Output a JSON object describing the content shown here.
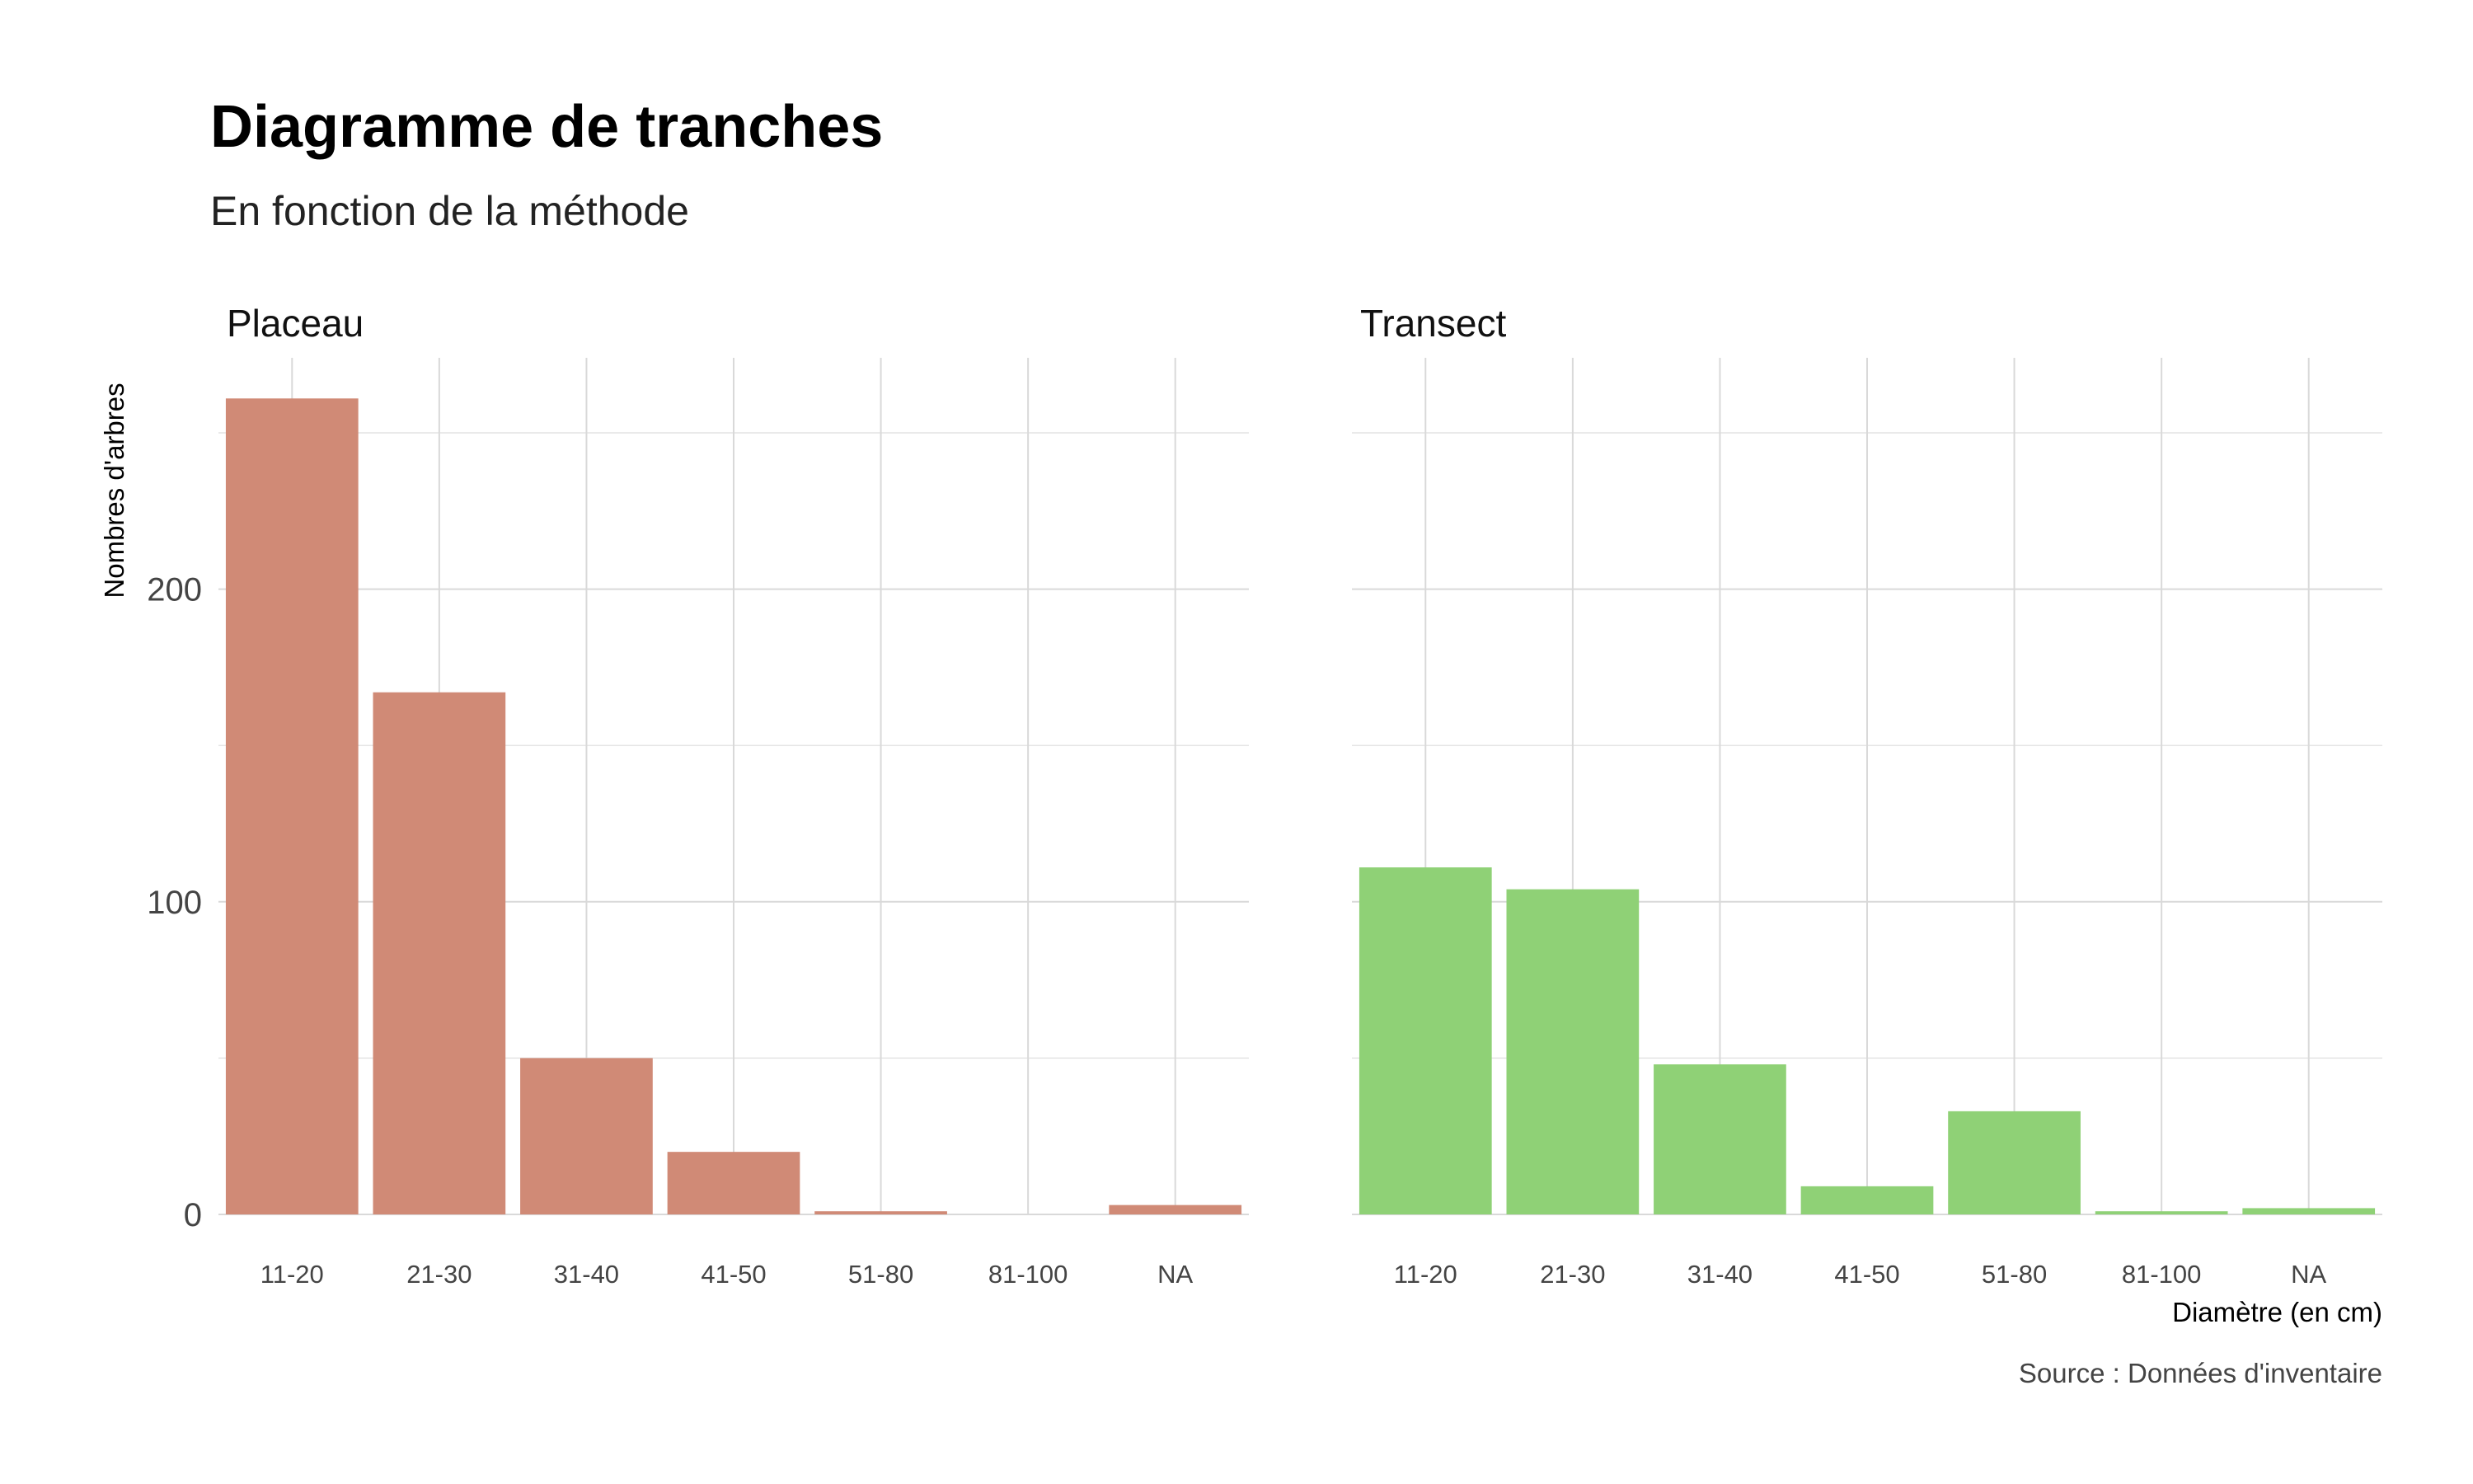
{
  "chart_data": {
    "type": "bar",
    "title": "Diagramme de tranches",
    "subtitle": "En fonction de la méthode",
    "ylabel": "Nombres d'arbres",
    "xlabel": "Diamètre (en cm)",
    "caption": "Source : Données d'inventaire",
    "ylim": [
      0,
      274
    ],
    "yticks": [
      0,
      100,
      200
    ],
    "yticks_minor": [
      50,
      150,
      250
    ],
    "grid": true,
    "categories": [
      "11-20",
      "21-30",
      "31-40",
      "41-50",
      "51-80",
      "81-100",
      "NA"
    ],
    "facets": [
      {
        "name": "Placeau",
        "color": "#d08a76",
        "values": [
          261,
          167,
          50,
          20,
          1,
          0,
          3
        ]
      },
      {
        "name": "Transect",
        "color": "#8fd176",
        "values": [
          111,
          104,
          48,
          9,
          33,
          1,
          2
        ]
      }
    ]
  }
}
